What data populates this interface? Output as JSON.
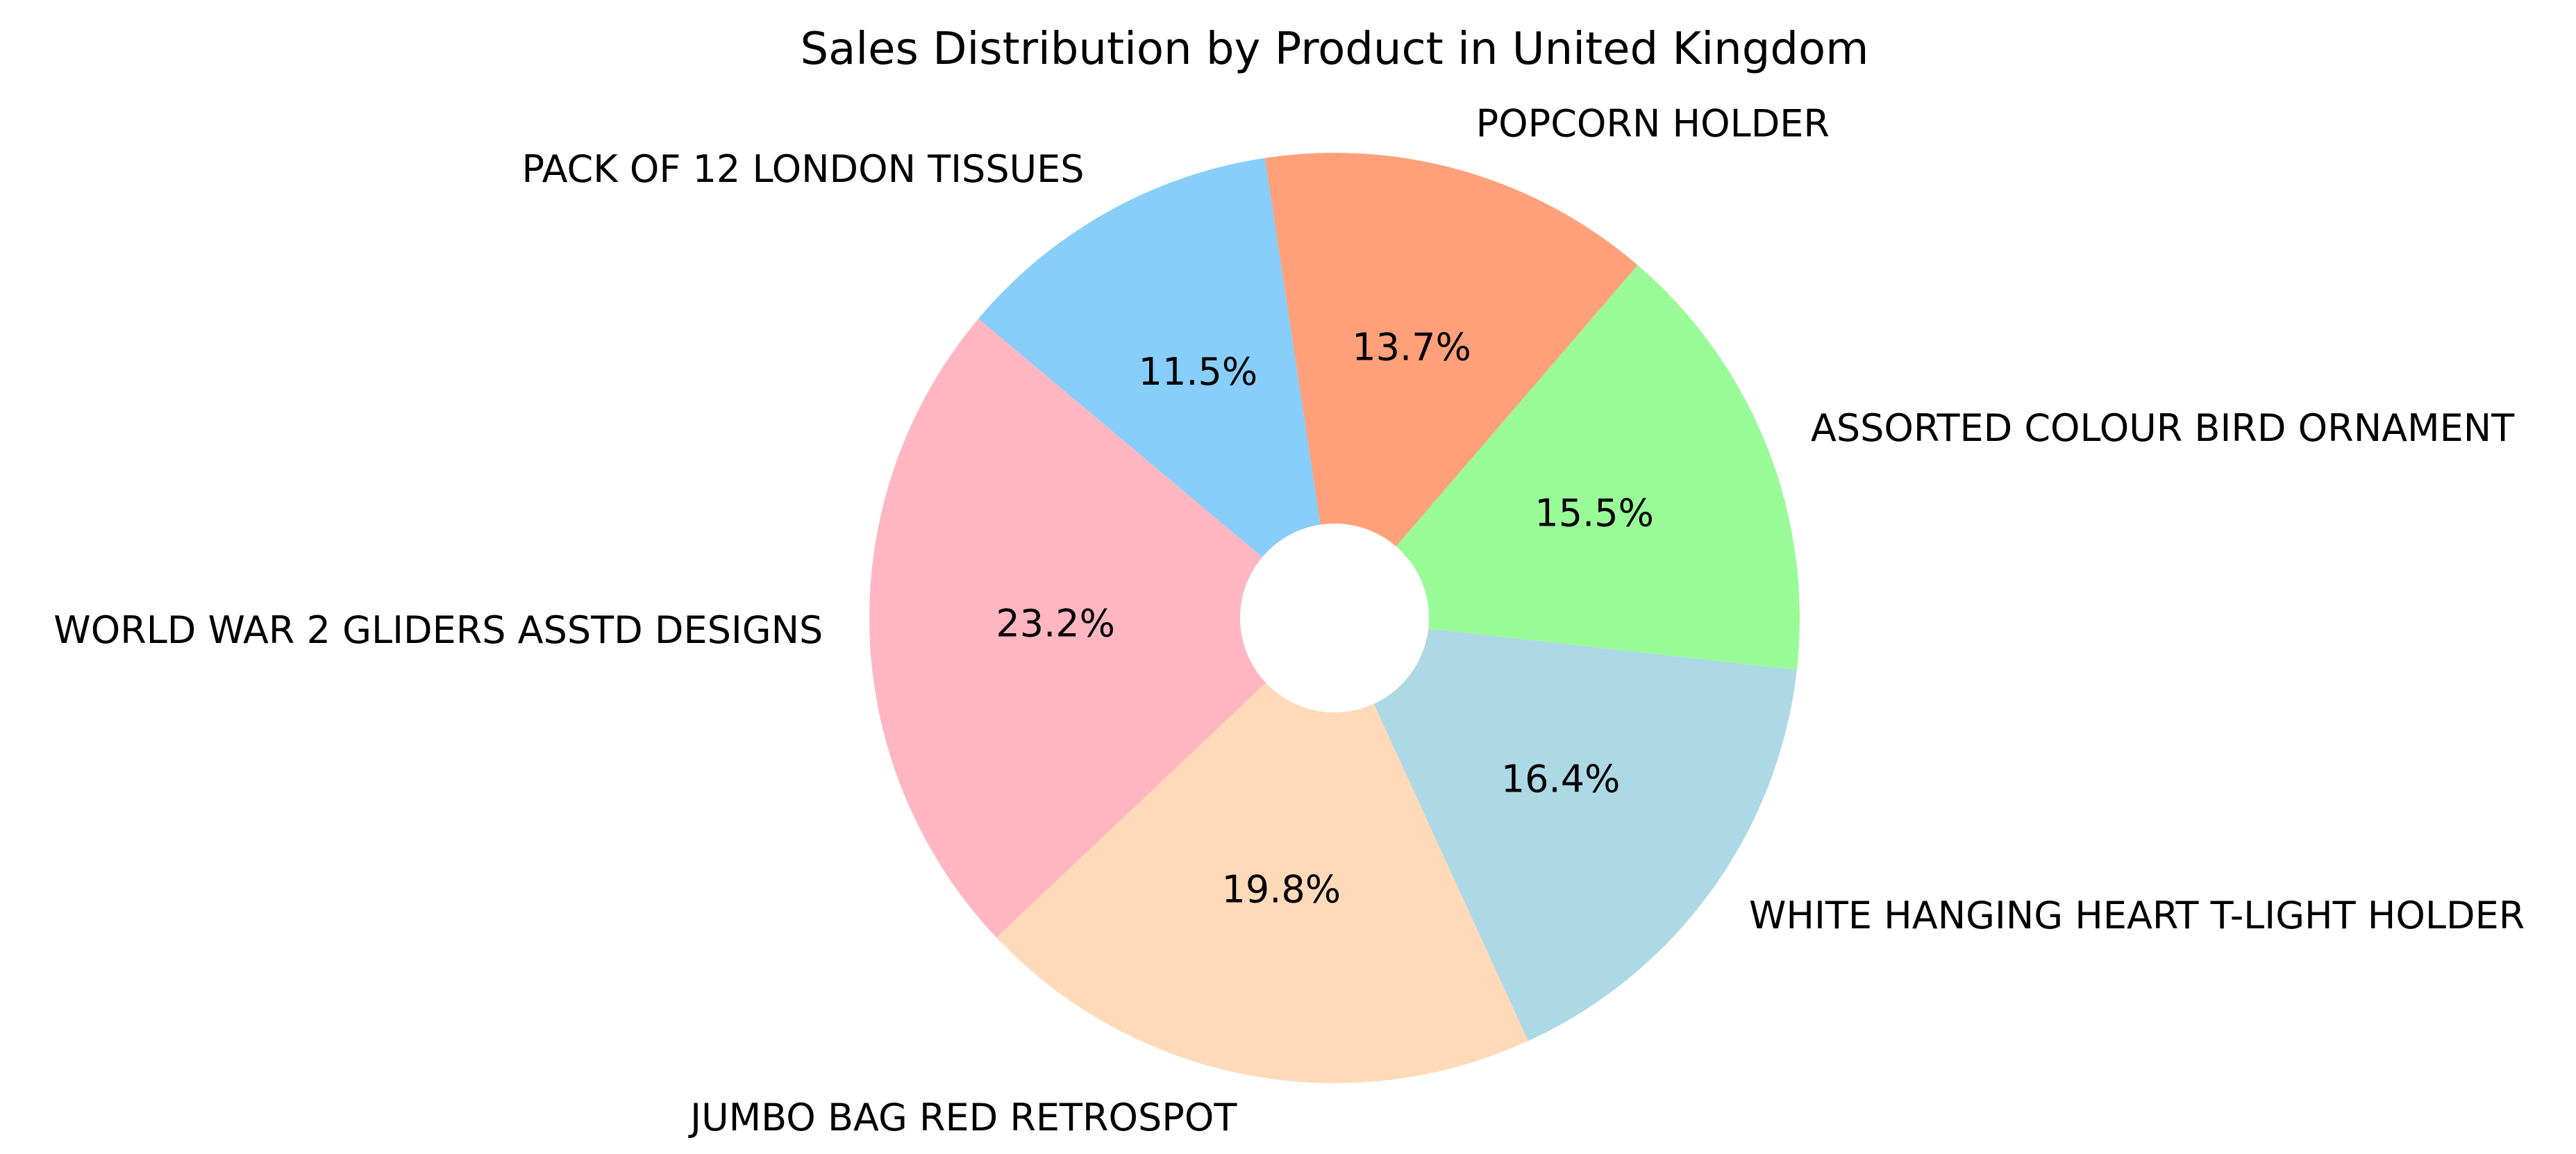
{
  "chart_data": {
    "type": "pie",
    "title": "Sales Distribution by Product in United Kingdom",
    "donut": true,
    "legend": "none",
    "slices": [
      {
        "label": "PACK OF 12 LONDON TISSUES",
        "percent": 11.5,
        "percent_label": "11.5%",
        "color": "#87CEFA"
      },
      {
        "label": "WORLD WAR 2 GLIDERS ASSTD DESIGNS",
        "percent": 23.2,
        "percent_label": "23.2%",
        "color": "#FFB6C1"
      },
      {
        "label": "JUMBO BAG RED RETROSPOT",
        "percent": 19.8,
        "percent_label": "19.8%",
        "color": "#FFDAB9"
      },
      {
        "label": "WHITE HANGING HEART T-LIGHT HOLDER",
        "percent": 16.4,
        "percent_label": "16.4%",
        "color": "#ADD8E6"
      },
      {
        "label": "ASSORTED COLOUR BIRD ORNAMENT",
        "percent": 15.5,
        "percent_label": "15.5%",
        "color": "#98FB98"
      },
      {
        "label": "POPCORN HOLDER",
        "percent": 13.7,
        "percent_label": "13.7%",
        "color": "#FFA07A"
      }
    ]
  }
}
